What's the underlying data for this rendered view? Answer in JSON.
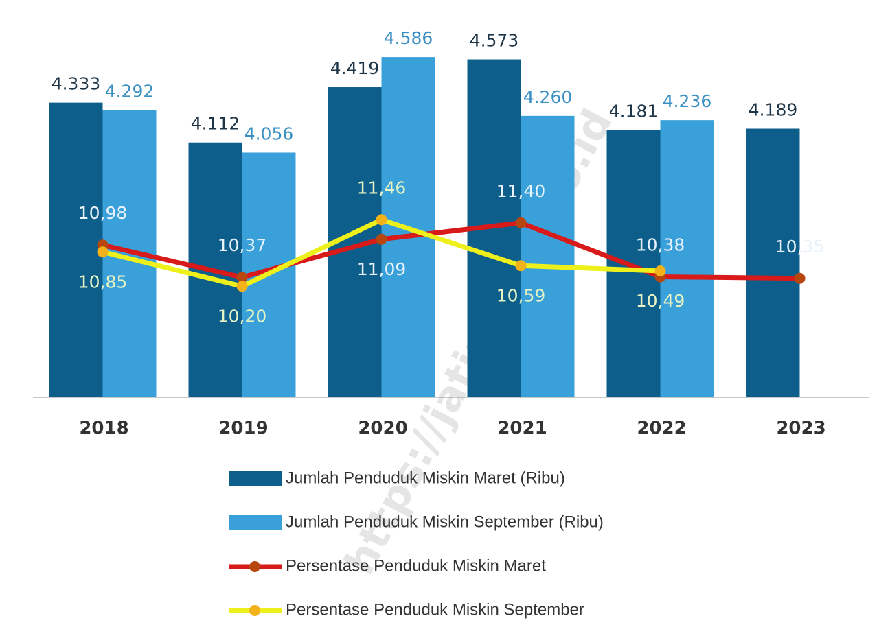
{
  "chart_data": {
    "type": "bar",
    "watermark": "https://jatim.bps.go.id",
    "categories": [
      "2018",
      "2019",
      "2020",
      "2021",
      "2022",
      "2023"
    ],
    "ylim": [
      2700,
      4750
    ],
    "y2lim": [
      8.1,
      15.1
    ],
    "series": [
      {
        "name": "Jumlah Penduduk Miskin Maret (Ribu)",
        "type": "bar",
        "color": "#0d5e8a",
        "values": [
          4333,
          4112,
          4419,
          4573,
          4181,
          4189
        ],
        "value_labels": [
          "4.333",
          "4.112",
          "4.419",
          "4.573",
          "4.181",
          "4.189"
        ]
      },
      {
        "name": "Jumlah Penduduk Miskin September (Ribu)",
        "type": "bar",
        "color": "#39a0d9",
        "values": [
          4292,
          4056,
          4586,
          4260,
          4236,
          null
        ],
        "value_labels": [
          "4.292",
          "4.056",
          "4.586",
          "4.260",
          "4.236",
          null
        ]
      },
      {
        "name": "Persentase Penduduk Miskin Maret",
        "type": "line",
        "axis": "y2",
        "color": "#d81a1a",
        "values": [
          10.98,
          10.37,
          11.09,
          11.4,
          10.38,
          10.35
        ],
        "value_labels": [
          "10,98",
          "10,37",
          "11,09",
          "11,40",
          "10,38",
          "10,35"
        ]
      },
      {
        "name": "Persentase Penduduk Miskin September",
        "type": "line",
        "axis": "y2",
        "color": "#eef01c",
        "values": [
          10.85,
          10.2,
          11.46,
          10.59,
          10.49,
          null
        ],
        "value_labels": [
          "10,85",
          "10,20",
          "11,46",
          "10,59",
          "10,49",
          null
        ]
      }
    ]
  }
}
